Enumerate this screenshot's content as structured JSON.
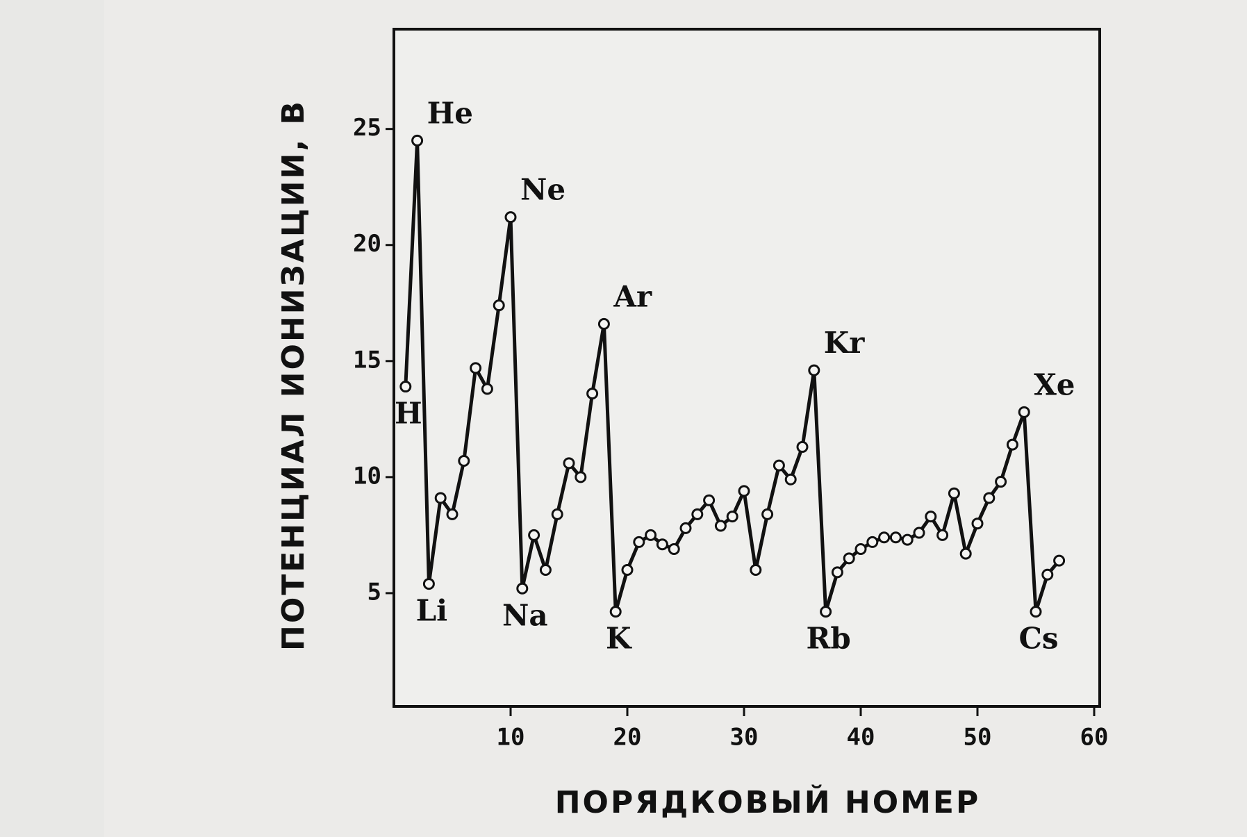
{
  "chart_data": {
    "type": "line",
    "x_label": "ПОРЯДКОВЫЙ  НОМЕР",
    "y_label": "ПОТЕНЦИАЛ  ИОНИЗАЦИИ, В",
    "x": [
      1,
      2,
      3,
      4,
      5,
      6,
      7,
      8,
      9,
      10,
      11,
      12,
      13,
      14,
      15,
      16,
      17,
      18,
      19,
      20,
      21,
      22,
      23,
      24,
      25,
      26,
      27,
      28,
      29,
      30,
      31,
      32,
      33,
      34,
      35,
      36,
      37,
      38,
      39,
      40,
      41,
      42,
      43,
      44,
      45,
      46,
      47,
      48,
      49,
      50,
      51,
      52,
      53,
      54,
      55,
      56,
      57
    ],
    "values": [
      13.9,
      24.5,
      5.4,
      9.1,
      8.4,
      10.7,
      14.7,
      13.8,
      17.4,
      21.2,
      5.2,
      7.5,
      6.0,
      8.4,
      10.6,
      10.0,
      13.6,
      16.6,
      4.2,
      6.0,
      7.2,
      7.5,
      7.1,
      6.9,
      7.8,
      8.4,
      9.0,
      7.9,
      8.3,
      9.4,
      6.0,
      8.4,
      10.5,
      9.9,
      11.3,
      14.6,
      4.2,
      5.9,
      6.5,
      6.9,
      7.2,
      7.4,
      7.4,
      7.3,
      7.6,
      8.3,
      7.5,
      9.3,
      6.7,
      8.0,
      9.1,
      9.8,
      11.4,
      12.8,
      4.2,
      5.8,
      6.4
    ],
    "color": "#111111",
    "xlim": [
      0,
      60
    ],
    "ylim": [
      0,
      29.3
    ],
    "xticks": [
      10,
      20,
      30,
      40,
      50,
      60
    ],
    "yticks": [
      5,
      10,
      15,
      20,
      25
    ],
    "grid": false,
    "annotations": [
      {
        "text": "H",
        "x": 1
      },
      {
        "text": "He",
        "x": 2
      },
      {
        "text": "Li",
        "x": 3
      },
      {
        "text": "Ne",
        "x": 10
      },
      {
        "text": "Na",
        "x": 11
      },
      {
        "text": "Ar",
        "x": 18
      },
      {
        "text": "K",
        "x": 19
      },
      {
        "text": "Kr",
        "x": 36
      },
      {
        "text": "Rb",
        "x": 37
      },
      {
        "text": "Xe",
        "x": 54
      },
      {
        "text": "Cs",
        "x": 55
      }
    ]
  }
}
